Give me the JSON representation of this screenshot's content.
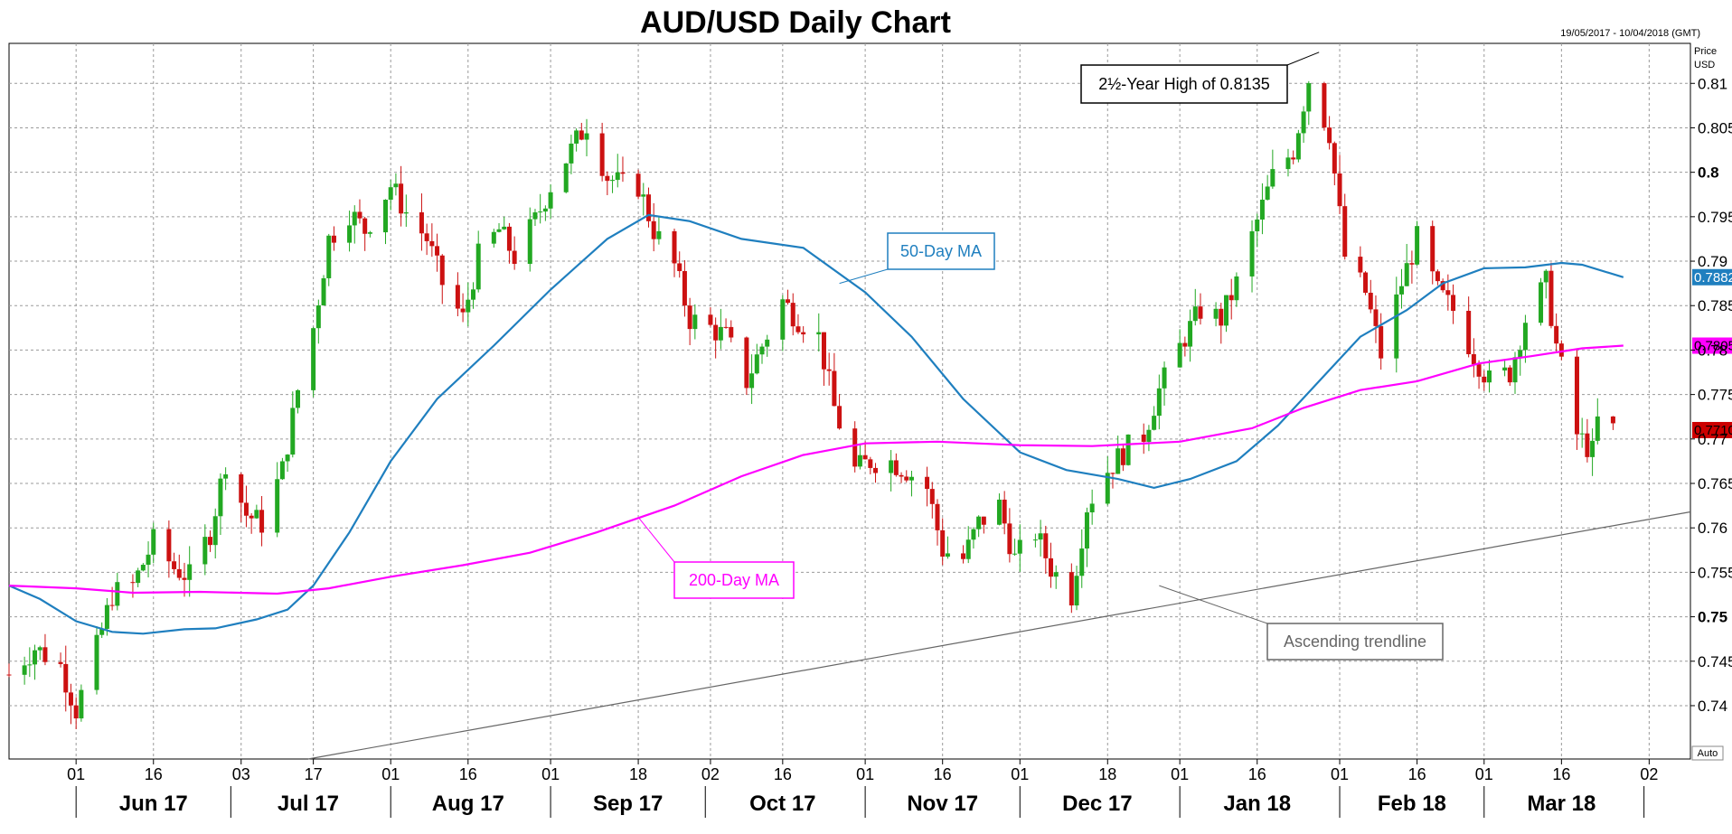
{
  "chart_data": {
    "type": "line",
    "title": "AUD/USD Daily Chart",
    "subtitle": "19/05/2017 - 10/04/2018 (GMT)",
    "ylabel": "Price\nUSD",
    "ylabel_lines": [
      "Price",
      "USD"
    ],
    "auto_label": "Auto",
    "ylim": [
      0.734,
      0.8145
    ],
    "y_ticks": [
      0.74,
      0.745,
      0.75,
      0.755,
      0.76,
      0.765,
      0.77,
      0.775,
      0.78,
      0.785,
      0.79,
      0.795,
      0.8,
      0.805,
      0.81
    ],
    "y_tick_labels": [
      "0.74",
      "0.745",
      "0.75",
      "0.755",
      "0.76",
      "0.765",
      "0.77",
      "0.775",
      "0.78",
      "0.785",
      "0.79",
      "0.795",
      "0.8",
      "0.805",
      "0.81"
    ],
    "bold_y_ticks": [
      "0.75",
      "0.8"
    ],
    "x_range": [
      "2017-05-19",
      "2018-04-10"
    ],
    "x_day_ticks": [
      {
        "date": "2017-06-01",
        "label": "01"
      },
      {
        "date": "2017-06-16",
        "label": "16"
      },
      {
        "date": "2017-07-03",
        "label": "03"
      },
      {
        "date": "2017-07-17",
        "label": "17"
      },
      {
        "date": "2017-08-01",
        "label": "01"
      },
      {
        "date": "2017-08-16",
        "label": "16"
      },
      {
        "date": "2017-09-01",
        "label": "01"
      },
      {
        "date": "2017-09-18",
        "label": "18"
      },
      {
        "date": "2017-10-02",
        "label": "02"
      },
      {
        "date": "2017-10-16",
        "label": "16"
      },
      {
        "date": "2017-11-01",
        "label": "01"
      },
      {
        "date": "2017-11-16",
        "label": "16"
      },
      {
        "date": "2017-12-01",
        "label": "01"
      },
      {
        "date": "2017-12-18",
        "label": "18"
      },
      {
        "date": "2018-01-01",
        "label": "01"
      },
      {
        "date": "2018-01-16",
        "label": "16"
      },
      {
        "date": "2018-02-01",
        "label": "01"
      },
      {
        "date": "2018-02-16",
        "label": "16"
      },
      {
        "date": "2018-03-01",
        "label": "01"
      },
      {
        "date": "2018-03-16",
        "label": "16"
      },
      {
        "date": "2018-04-02",
        "label": "02"
      }
    ],
    "x_month_labels": [
      {
        "date": "2017-06-16",
        "label": "Jun 17"
      },
      {
        "date": "2017-07-16",
        "label": "Jul 17"
      },
      {
        "date": "2017-08-16",
        "label": "Aug 17"
      },
      {
        "date": "2017-09-16",
        "label": "Sep 17"
      },
      {
        "date": "2017-10-16",
        "label": "Oct 17"
      },
      {
        "date": "2017-11-16",
        "label": "Nov 17"
      },
      {
        "date": "2017-12-16",
        "label": "Dec 17"
      },
      {
        "date": "2018-01-16",
        "label": "Jan 18"
      },
      {
        "date": "2018-02-15",
        "label": "Feb 18"
      },
      {
        "date": "2018-03-16",
        "label": "Mar 18"
      }
    ],
    "month_separators": [
      "2017-06-01",
      "2017-07-01",
      "2017-08-01",
      "2017-09-01",
      "2017-10-01",
      "2017-11-01",
      "2017-12-01",
      "2018-01-01",
      "2018-02-01",
      "2018-03-01",
      "2018-04-01"
    ],
    "grid": true,
    "price_path": [
      [
        "2017-05-19",
        0.7435
      ],
      [
        "2017-05-24",
        0.7465
      ],
      [
        "2017-05-29",
        0.7445
      ],
      [
        "2017-06-01",
        0.7395
      ],
      [
        "2017-06-05",
        0.7465
      ],
      [
        "2017-06-08",
        0.7525
      ],
      [
        "2017-06-12",
        0.7535
      ],
      [
        "2017-06-16",
        0.7585
      ],
      [
        "2017-06-20",
        0.7555
      ],
      [
        "2017-06-23",
        0.7545
      ],
      [
        "2017-06-27",
        0.7595
      ],
      [
        "2017-06-30",
        0.7675
      ],
      [
        "2017-07-04",
        0.7615
      ],
      [
        "2017-07-07",
        0.7605
      ],
      [
        "2017-07-11",
        0.7665
      ],
      [
        "2017-07-14",
        0.7755
      ],
      [
        "2017-07-17",
        0.7825
      ],
      [
        "2017-07-20",
        0.7925
      ],
      [
        "2017-07-24",
        0.7955
      ],
      [
        "2017-07-27",
        0.7935
      ],
      [
        "2017-08-01",
        0.7985
      ],
      [
        "2017-08-04",
        0.7955
      ],
      [
        "2017-08-08",
        0.7925
      ],
      [
        "2017-08-11",
        0.7875
      ],
      [
        "2017-08-15",
        0.7835
      ],
      [
        "2017-08-18",
        0.7905
      ],
      [
        "2017-08-22",
        0.7935
      ],
      [
        "2017-08-25",
        0.7905
      ],
      [
        "2017-08-29",
        0.7945
      ],
      [
        "2017-09-01",
        0.7985
      ],
      [
        "2017-09-05",
        0.8025
      ],
      [
        "2017-09-08",
        0.8055
      ],
      [
        "2017-09-12",
        0.7995
      ],
      [
        "2017-09-15",
        0.7985
      ],
      [
        "2017-09-18",
        0.7985
      ],
      [
        "2017-09-21",
        0.7935
      ],
      [
        "2017-09-25",
        0.7895
      ],
      [
        "2017-09-28",
        0.7835
      ],
      [
        "2017-10-02",
        0.7825
      ],
      [
        "2017-10-05",
        0.7815
      ],
      [
        "2017-10-09",
        0.7765
      ],
      [
        "2017-10-12",
        0.7805
      ],
      [
        "2017-10-16",
        0.7855
      ],
      [
        "2017-10-19",
        0.7835
      ],
      [
        "2017-10-23",
        0.7815
      ],
      [
        "2017-10-26",
        0.7735
      ],
      [
        "2017-10-30",
        0.7665
      ],
      [
        "2017-11-02",
        0.7675
      ],
      [
        "2017-11-06",
        0.7675
      ],
      [
        "2017-11-09",
        0.7665
      ],
      [
        "2017-11-13",
        0.7645
      ],
      [
        "2017-11-16",
        0.7575
      ],
      [
        "2017-11-20",
        0.7565
      ],
      [
        "2017-11-23",
        0.7605
      ],
      [
        "2017-11-27",
        0.7625
      ],
      [
        "2017-11-30",
        0.7565
      ],
      [
        "2017-12-04",
        0.7595
      ],
      [
        "2017-12-07",
        0.7555
      ],
      [
        "2017-12-11",
        0.7525
      ],
      [
        "2017-12-14",
        0.7625
      ],
      [
        "2017-12-18",
        0.7665
      ],
      [
        "2017-12-21",
        0.7685
      ],
      [
        "2017-12-25",
        0.7705
      ],
      [
        "2017-12-28",
        0.7755
      ],
      [
        "2018-01-02",
        0.7815
      ],
      [
        "2018-01-05",
        0.7845
      ],
      [
        "2018-01-09",
        0.7835
      ],
      [
        "2018-01-12",
        0.7875
      ],
      [
        "2018-01-16",
        0.7945
      ],
      [
        "2018-01-19",
        0.7995
      ],
      [
        "2018-01-23",
        0.8025
      ],
      [
        "2018-01-26",
        0.8105
      ],
      [
        "2018-01-30",
        0.8045
      ],
      [
        "2018-02-02",
        0.7905
      ],
      [
        "2018-02-06",
        0.7865
      ],
      [
        "2018-02-09",
        0.7795
      ],
      [
        "2018-02-13",
        0.7875
      ],
      [
        "2018-02-16",
        0.7925
      ],
      [
        "2018-02-20",
        0.7865
      ],
      [
        "2018-02-23",
        0.7845
      ],
      [
        "2018-02-27",
        0.7795
      ],
      [
        "2018-03-02",
        0.7765
      ],
      [
        "2018-03-06",
        0.7775
      ],
      [
        "2018-03-09",
        0.7835
      ],
      [
        "2018-03-13",
        0.7875
      ],
      [
        "2018-03-15",
        0.7805
      ],
      [
        "2018-03-19",
        0.7705
      ],
      [
        "2018-03-22",
        0.7685
      ],
      [
        "2018-03-23",
        0.772
      ],
      [
        "2018-03-26",
        0.771
      ]
    ],
    "series": [
      {
        "name": "50-Day MA",
        "color": "#1f7fbf",
        "last_value": 0.7882,
        "last_label": "0.7882",
        "points": [
          [
            "2017-05-19",
            0.7535
          ],
          [
            "2017-05-25",
            0.752
          ],
          [
            "2017-06-01",
            0.7495
          ],
          [
            "2017-06-08",
            0.7483
          ],
          [
            "2017-06-14",
            0.7481
          ],
          [
            "2017-06-22",
            0.7486
          ],
          [
            "2017-06-28",
            0.7487
          ],
          [
            "2017-07-06",
            0.7497
          ],
          [
            "2017-07-12",
            0.7508
          ],
          [
            "2017-07-17",
            0.7535
          ],
          [
            "2017-07-24",
            0.7595
          ],
          [
            "2017-08-01",
            0.7675
          ],
          [
            "2017-08-10",
            0.7745
          ],
          [
            "2017-08-21",
            0.7805
          ],
          [
            "2017-09-01",
            0.7868
          ],
          [
            "2017-09-12",
            0.7925
          ],
          [
            "2017-09-20",
            0.7952
          ],
          [
            "2017-09-28",
            0.7945
          ],
          [
            "2017-10-08",
            0.7925
          ],
          [
            "2017-10-20",
            0.7915
          ],
          [
            "2017-11-01",
            0.7865
          ],
          [
            "2017-11-10",
            0.7815
          ],
          [
            "2017-11-20",
            0.7745
          ],
          [
            "2017-12-01",
            0.7685
          ],
          [
            "2017-12-10",
            0.7665
          ],
          [
            "2017-12-20",
            0.7655
          ],
          [
            "2017-12-27",
            0.7645
          ],
          [
            "2018-01-03",
            0.7655
          ],
          [
            "2018-01-12",
            0.7675
          ],
          [
            "2018-01-20",
            0.7715
          ],
          [
            "2018-01-28",
            0.7765
          ],
          [
            "2018-02-05",
            0.7815
          ],
          [
            "2018-02-14",
            0.7845
          ],
          [
            "2018-02-21",
            0.7875
          ],
          [
            "2018-03-01",
            0.7892
          ],
          [
            "2018-03-09",
            0.7893
          ],
          [
            "2018-03-16",
            0.7898
          ],
          [
            "2018-03-20",
            0.7896
          ],
          [
            "2018-03-28",
            0.7882
          ]
        ]
      },
      {
        "name": "200-Day MA",
        "color": "#ff00ff",
        "last_value": 0.7805,
        "last_label": "0.7805",
        "points": [
          [
            "2017-05-19",
            0.7535
          ],
          [
            "2017-06-01",
            0.7532
          ],
          [
            "2017-06-12",
            0.7527
          ],
          [
            "2017-06-25",
            0.7528
          ],
          [
            "2017-07-10",
            0.7526
          ],
          [
            "2017-07-20",
            0.7532
          ],
          [
            "2017-08-01",
            0.7545
          ],
          [
            "2017-08-15",
            0.7558
          ],
          [
            "2017-08-28",
            0.7572
          ],
          [
            "2017-09-10",
            0.7595
          ],
          [
            "2017-09-25",
            0.7625
          ],
          [
            "2017-10-08",
            0.7658
          ],
          [
            "2017-10-20",
            0.7682
          ],
          [
            "2017-11-01",
            0.7695
          ],
          [
            "2017-11-15",
            0.7697
          ],
          [
            "2017-12-01",
            0.7693
          ],
          [
            "2017-12-15",
            0.7692
          ],
          [
            "2018-01-01",
            0.7697
          ],
          [
            "2018-01-15",
            0.7712
          ],
          [
            "2018-01-25",
            0.7735
          ],
          [
            "2018-02-05",
            0.7755
          ],
          [
            "2018-02-16",
            0.7765
          ],
          [
            "2018-02-28",
            0.7785
          ],
          [
            "2018-03-10",
            0.7793
          ],
          [
            "2018-03-20",
            0.7802
          ],
          [
            "2018-03-28",
            0.7805
          ]
        ]
      },
      {
        "name": "Ascending trendline",
        "color": "#666666",
        "points": [
          [
            "2017-07-16",
            0.734
          ],
          [
            "2018-04-10",
            0.7618
          ]
        ]
      }
    ],
    "last_price": 0.771,
    "last_price_label": "0.7710",
    "annotations": [
      {
        "text": "2½-Year High of 0.8135",
        "target": [
          "2018-01-28",
          0.8135
        ]
      },
      {
        "text": "50-Day MA",
        "target": [
          "2017-10-27",
          0.7875
        ]
      },
      {
        "text": "200-Day MA",
        "target": [
          "2017-09-18",
          0.7612
        ]
      },
      {
        "text": "Ascending trendline",
        "target": [
          "2017-12-28",
          0.7535
        ]
      }
    ]
  }
}
